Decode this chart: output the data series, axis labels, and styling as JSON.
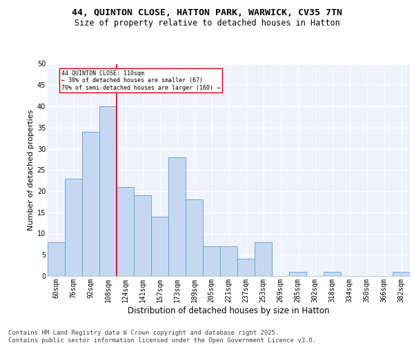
{
  "title_line1": "44, QUINTON CLOSE, HATTON PARK, WARWICK, CV35 7TN",
  "title_line2": "Size of property relative to detached houses in Hatton",
  "xlabel": "Distribution of detached houses by size in Hatton",
  "ylabel": "Number of detached properties",
  "categories": [
    "60sqm",
    "76sqm",
    "92sqm",
    "108sqm",
    "124sqm",
    "141sqm",
    "157sqm",
    "173sqm",
    "189sqm",
    "205sqm",
    "221sqm",
    "237sqm",
    "253sqm",
    "269sqm",
    "285sqm",
    "302sqm",
    "318sqm",
    "334sqm",
    "350sqm",
    "366sqm",
    "382sqm"
  ],
  "values": [
    8,
    23,
    34,
    40,
    21,
    19,
    14,
    28,
    18,
    7,
    7,
    4,
    8,
    0,
    1,
    0,
    1,
    0,
    0,
    0,
    1
  ],
  "bar_color": "#c5d8f0",
  "bar_edge_color": "#5a9fd4",
  "red_line_index": 3,
  "annotation_text": "44 QUINTON CLOSE: 110sqm\n← 30% of detached houses are smaller (67)\n70% of semi-detached houses are larger (160) →",
  "annotation_box_color": "#ffffff",
  "annotation_box_edge": "#cc0000",
  "red_line_color": "#cc0000",
  "ylim": [
    0,
    50
  ],
  "yticks": [
    0,
    5,
    10,
    15,
    20,
    25,
    30,
    35,
    40,
    45,
    50
  ],
  "background_color": "#eef2fa",
  "footer_line1": "Contains HM Land Registry data © Crown copyright and database right 2025.",
  "footer_line2": "Contains public sector information licensed under the Open Government Licence v3.0.",
  "title_fontsize": 9.5,
  "subtitle_fontsize": 8.5,
  "axis_label_fontsize": 8,
  "tick_fontsize": 7,
  "footer_fontsize": 6.5
}
